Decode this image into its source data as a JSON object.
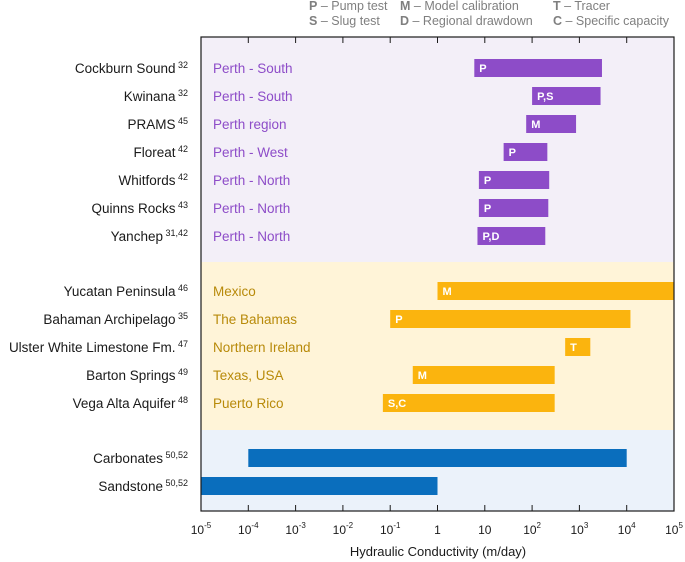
{
  "chart_data": {
    "type": "bar",
    "orientation": "horizontal-range",
    "xlabel": "Hydraulic Conductivity (m/day)",
    "xscale": "log",
    "xlim": [
      1e-05,
      100000
    ],
    "ticks": [
      {
        "base": "10",
        "exp": "-5"
      },
      {
        "base": "10",
        "exp": "-4"
      },
      {
        "base": "10",
        "exp": "-3"
      },
      {
        "base": "10",
        "exp": "-2"
      },
      {
        "base": "10",
        "exp": "-1"
      },
      {
        "base": "1",
        "exp": ""
      },
      {
        "base": "10",
        "exp": ""
      },
      {
        "base": "10",
        "exp": "2"
      },
      {
        "base": "10",
        "exp": "3"
      },
      {
        "base": "10",
        "exp": "4"
      },
      {
        "base": "10",
        "exp": "5"
      }
    ],
    "legend": [
      {
        "key": "P",
        "text": "– Pump test"
      },
      {
        "key": "S",
        "text": "– Slug test"
      },
      {
        "key": "M",
        "text": "– Model calibration"
      },
      {
        "key": "D",
        "text": "– Regional drawdown"
      },
      {
        "key": "T",
        "text": "– Tracer"
      },
      {
        "key": "C",
        "text": "– Specific capacity"
      }
    ],
    "groups": [
      {
        "name": "perth",
        "bg": "#f3eff8",
        "color": "#8d4cc8",
        "label_color": "#8d4cc8"
      },
      {
        "name": "international",
        "bg": "#fff4d8",
        "color": "#fbb40e",
        "label_color": "#b88a0a"
      },
      {
        "name": "general",
        "bg": "#ebf2fa",
        "color": "#0a6ebd",
        "label_color": "#1a1a1a"
      }
    ],
    "series": [
      {
        "name": "Cockburn Sound",
        "ref": "32",
        "location": "Perth - South",
        "method": "P",
        "min": 6,
        "max": 3000,
        "group": 0
      },
      {
        "name": "Kwinana",
        "ref": "32",
        "location": "Perth - South",
        "method": "P,S",
        "min": 100,
        "max": 2800,
        "group": 0
      },
      {
        "name": "PRAMS",
        "ref": "45",
        "location": "Perth region",
        "method": "M",
        "min": 75,
        "max": 850,
        "group": 0
      },
      {
        "name": "Floreat",
        "ref": "42",
        "location": "Perth - West",
        "method": "P",
        "min": 25,
        "max": 210,
        "group": 0
      },
      {
        "name": "Whitfords",
        "ref": "42",
        "location": "Perth - North",
        "method": "P",
        "min": 7.5,
        "max": 230,
        "group": 0
      },
      {
        "name": "Quinns Rocks",
        "ref": "43",
        "location": "Perth - North",
        "method": "P",
        "min": 7.5,
        "max": 220,
        "group": 0
      },
      {
        "name": "Yanchep",
        "ref": "31,42",
        "location": "Perth - North",
        "method": "P,D",
        "min": 7,
        "max": 190,
        "group": 0
      },
      {
        "name": "Yucatan Peninsula",
        "ref": "46",
        "location": "Mexico",
        "method": "M",
        "min": 1,
        "max": 100000,
        "group": 1
      },
      {
        "name": "Bahaman Archipelago",
        "ref": "35",
        "location": "The Bahamas",
        "method": "P",
        "min": 0.1,
        "max": 12000,
        "group": 1
      },
      {
        "name": "Ulster White Limestone Fm.",
        "ref": "47",
        "location": "Northern Ireland",
        "method": "T",
        "min": 500,
        "max": 1700,
        "group": 1
      },
      {
        "name": "Barton Springs",
        "ref": "49",
        "location": "Texas, USA",
        "method": "M",
        "min": 0.3,
        "max": 300,
        "group": 1
      },
      {
        "name": "Vega Alta Aquifer",
        "ref": "48",
        "location": "Puerto Rico",
        "method": "S,C",
        "min": 0.07,
        "max": 300,
        "group": 1
      },
      {
        "name": "Carbonates",
        "ref": "50,52",
        "location": "",
        "method": "",
        "min": 0.0001,
        "max": 10000,
        "group": 2
      },
      {
        "name": "Sandstone",
        "ref": "50,52",
        "location": "",
        "method": "",
        "min": 1e-05,
        "max": 1,
        "group": 2
      }
    ]
  }
}
